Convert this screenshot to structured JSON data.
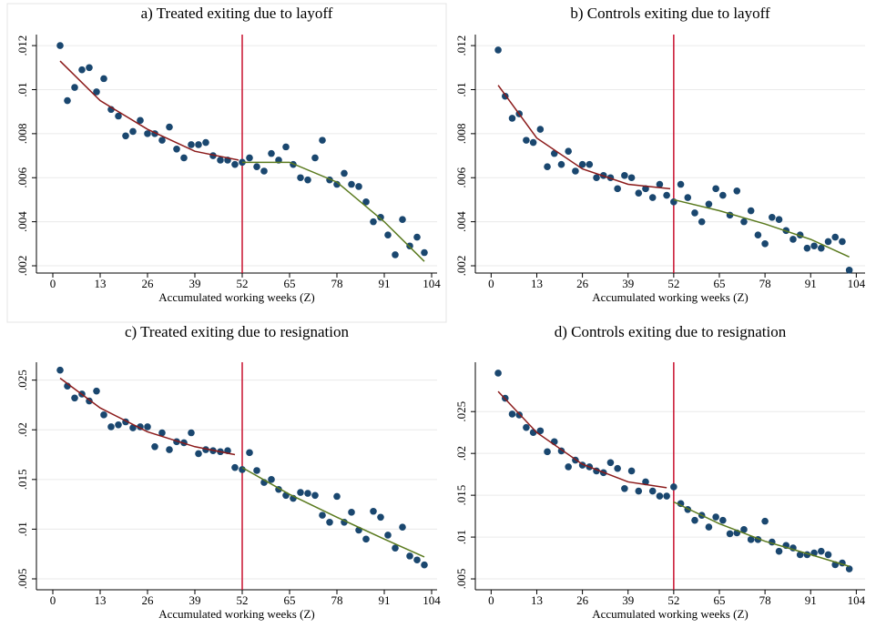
{
  "chart_data": [
    {
      "type": "scatter",
      "title": "a) Treated exiting due to layoff",
      "xlabel": "Accumulated working weeks (Z)",
      "xlim": [
        -4.5,
        105.5
      ],
      "xticks": [
        0,
        13,
        26,
        39,
        52,
        65,
        78,
        91,
        104
      ],
      "ylim": [
        0.00167,
        0.0125
      ],
      "yticks": [
        {
          "value": 0.002,
          "label": ".002"
        },
        {
          "value": 0.004,
          "label": ".004"
        },
        {
          "value": 0.006,
          "label": ".006"
        },
        {
          "value": 0.008,
          "label": ".008"
        },
        {
          "value": 0.01,
          "label": ".01"
        },
        {
          "value": 0.012,
          "label": ".012"
        }
      ],
      "grid": true,
      "vline": 52,
      "vline_color": "#c8102e",
      "points": {
        "color": "#1a476f",
        "x": [
          2,
          4,
          6,
          8,
          10,
          12,
          14,
          16,
          18,
          20,
          22,
          24,
          26,
          28,
          30,
          32,
          34,
          36,
          38,
          40,
          42,
          44,
          46,
          48,
          50,
          52,
          54,
          56,
          58,
          60,
          62,
          64,
          66,
          68,
          70,
          72,
          74,
          76,
          78,
          80,
          82,
          84,
          86,
          88,
          90,
          92,
          94,
          96,
          98,
          100,
          102
        ],
        "values": [
          0.012,
          0.0095,
          0.0101,
          0.0109,
          0.011,
          0.0099,
          0.0105,
          0.0091,
          0.0088,
          0.0079,
          0.0081,
          0.0086,
          0.008,
          0.008,
          0.0077,
          0.0083,
          0.0073,
          0.0069,
          0.0075,
          0.0075,
          0.0076,
          0.007,
          0.0068,
          0.0068,
          0.0066,
          0.0067,
          0.0069,
          0.0065,
          0.0063,
          0.0071,
          0.0068,
          0.0074,
          0.0066,
          0.006,
          0.0059,
          0.0069,
          0.0077,
          0.0059,
          0.0057,
          0.0062,
          0.0057,
          0.0056,
          0.0049,
          0.004,
          0.0042,
          0.0034,
          0.0025,
          0.0041,
          0.0029,
          0.0033,
          0.0026
        ]
      },
      "fits": [
        {
          "color": "#8b1a1a",
          "x": [
            2,
            13,
            26,
            39,
            51
          ],
          "values": [
            0.0113,
            0.0095,
            0.0082,
            0.0072,
            0.0068
          ]
        },
        {
          "color": "#5a7a1e",
          "x": [
            52,
            65,
            78,
            91,
            102
          ],
          "values": [
            0.0067,
            0.0067,
            0.0058,
            0.004,
            0.0022
          ]
        }
      ]
    },
    {
      "type": "scatter",
      "title": "b) Controls exiting due to layoff",
      "xlabel": "Accumulated working weeks (Z)",
      "xlim": [
        -4.5,
        106.5
      ],
      "xticks": [
        0,
        13,
        26,
        39,
        52,
        65,
        78,
        91,
        104
      ],
      "ylim": [
        0.00167,
        0.0125
      ],
      "yticks": [
        {
          "value": 0.002,
          "label": ".002"
        },
        {
          "value": 0.004,
          "label": ".004"
        },
        {
          "value": 0.006,
          "label": ".006"
        },
        {
          "value": 0.008,
          "label": ".008"
        },
        {
          "value": 0.01,
          "label": ".01"
        },
        {
          "value": 0.012,
          "label": ".012"
        }
      ],
      "grid": true,
      "vline": 52,
      "vline_color": "#c8102e",
      "points": {
        "color": "#1a476f",
        "x": [
          2,
          4,
          6,
          8,
          10,
          12,
          14,
          16,
          18,
          20,
          22,
          24,
          26,
          28,
          30,
          32,
          34,
          36,
          38,
          40,
          42,
          44,
          46,
          48,
          50,
          52,
          54,
          56,
          58,
          60,
          62,
          64,
          66,
          68,
          70,
          72,
          74,
          76,
          78,
          80,
          82,
          84,
          86,
          88,
          90,
          92,
          94,
          96,
          98,
          100,
          102
        ],
        "values": [
          0.0118,
          0.0097,
          0.0087,
          0.0089,
          0.0077,
          0.0076,
          0.0082,
          0.0065,
          0.0071,
          0.0066,
          0.0072,
          0.0063,
          0.0066,
          0.0066,
          0.006,
          0.0061,
          0.006,
          0.0055,
          0.0061,
          0.006,
          0.0053,
          0.0055,
          0.0051,
          0.0057,
          0.0052,
          0.0049,
          0.0057,
          0.0051,
          0.0044,
          0.004,
          0.0048,
          0.0055,
          0.0052,
          0.0043,
          0.0054,
          0.004,
          0.0045,
          0.0034,
          0.003,
          0.0042,
          0.0041,
          0.0036,
          0.0032,
          0.0034,
          0.0028,
          0.0029,
          0.0028,
          0.0031,
          0.0033,
          0.0031,
          0.0018
        ]
      },
      "fits": [
        {
          "color": "#8b1a1a",
          "x": [
            2,
            13,
            26,
            39,
            51
          ],
          "values": [
            0.0102,
            0.0078,
            0.0064,
            0.0057,
            0.0055
          ]
        },
        {
          "color": "#5a7a1e",
          "x": [
            52,
            65,
            78,
            91,
            102
          ],
          "values": [
            0.005,
            0.0045,
            0.0039,
            0.0032,
            0.0024
          ]
        }
      ]
    },
    {
      "type": "scatter",
      "title": "c) Treated exiting due to resignation",
      "xlabel": "Accumulated working weeks (Z)",
      "xlim": [
        -4.5,
        105.5
      ],
      "xticks": [
        0,
        13,
        26,
        39,
        52,
        65,
        78,
        91,
        104
      ],
      "ylim": [
        0.0039,
        0.0268
      ],
      "yticks": [
        {
          "value": 0.005,
          "label": ".005"
        },
        {
          "value": 0.01,
          "label": ".01"
        },
        {
          "value": 0.015,
          "label": ".015"
        },
        {
          "value": 0.02,
          "label": ".02"
        },
        {
          "value": 0.025,
          "label": ".025"
        }
      ],
      "grid": true,
      "vline": 52,
      "vline_color": "#c8102e",
      "points": {
        "color": "#1a476f",
        "x": [
          2,
          4,
          6,
          8,
          10,
          12,
          14,
          16,
          18,
          20,
          22,
          24,
          26,
          28,
          30,
          32,
          34,
          36,
          38,
          40,
          42,
          44,
          46,
          48,
          50,
          52,
          54,
          56,
          58,
          60,
          62,
          64,
          66,
          68,
          70,
          72,
          74,
          76,
          78,
          80,
          82,
          84,
          86,
          88,
          90,
          92,
          94,
          96,
          98,
          100,
          102
        ],
        "values": [
          0.026,
          0.0244,
          0.0232,
          0.0236,
          0.0229,
          0.0239,
          0.0215,
          0.0203,
          0.0205,
          0.0208,
          0.0202,
          0.0203,
          0.0203,
          0.0183,
          0.0197,
          0.018,
          0.0188,
          0.0187,
          0.0197,
          0.0176,
          0.018,
          0.0179,
          0.0178,
          0.0179,
          0.0162,
          0.016,
          0.0177,
          0.0159,
          0.0147,
          0.015,
          0.014,
          0.0134,
          0.0131,
          0.0137,
          0.0136,
          0.0134,
          0.0114,
          0.0107,
          0.0133,
          0.0107,
          0.0117,
          0.0099,
          0.009,
          0.0118,
          0.0112,
          0.0094,
          0.0081,
          0.0102,
          0.0073,
          0.0069,
          0.0064
        ]
      },
      "fits": [
        {
          "color": "#8b1a1a",
          "x": [
            2,
            13,
            26,
            39,
            50
          ],
          "values": [
            0.0252,
            0.0222,
            0.0198,
            0.0183,
            0.0175
          ]
        },
        {
          "color": "#5a7a1e",
          "x": [
            52,
            65,
            78,
            91,
            102
          ],
          "values": [
            0.0162,
            0.0135,
            0.0112,
            0.009,
            0.0072
          ]
        }
      ]
    },
    {
      "type": "scatter",
      "title": "d) Controls exiting due to resignation",
      "xlabel": "Accumulated working weeks (Z)",
      "xlim": [
        -4.5,
        106.5
      ],
      "xticks": [
        0,
        13,
        26,
        39,
        52,
        65,
        78,
        91,
        104
      ],
      "ylim": [
        0.0037,
        0.0309
      ],
      "yticks": [
        {
          "value": 0.005,
          "label": ".005"
        },
        {
          "value": 0.01,
          "label": ".01"
        },
        {
          "value": 0.015,
          "label": ".015"
        },
        {
          "value": 0.02,
          "label": ".02"
        },
        {
          "value": 0.025,
          "label": ".025"
        }
      ],
      "grid": true,
      "vline": 52,
      "vline_color": "#c8102e",
      "points": {
        "color": "#1a476f",
        "x": [
          2,
          4,
          6,
          8,
          10,
          12,
          14,
          16,
          18,
          20,
          22,
          24,
          26,
          28,
          30,
          32,
          34,
          36,
          38,
          40,
          42,
          44,
          46,
          48,
          50,
          52,
          54,
          56,
          58,
          60,
          62,
          64,
          66,
          68,
          70,
          72,
          74,
          76,
          78,
          80,
          82,
          84,
          86,
          88,
          90,
          92,
          94,
          96,
          98,
          100,
          102
        ],
        "values": [
          0.0296,
          0.0266,
          0.0247,
          0.0246,
          0.0231,
          0.0225,
          0.0227,
          0.0202,
          0.0214,
          0.0203,
          0.0184,
          0.0192,
          0.0186,
          0.0184,
          0.0179,
          0.0177,
          0.0189,
          0.0182,
          0.0158,
          0.0179,
          0.0155,
          0.0166,
          0.0155,
          0.0149,
          0.0149,
          0.016,
          0.014,
          0.0133,
          0.012,
          0.0126,
          0.0112,
          0.0124,
          0.012,
          0.0104,
          0.0105,
          0.0109,
          0.0097,
          0.0097,
          0.0119,
          0.0094,
          0.0083,
          0.009,
          0.0087,
          0.0079,
          0.0079,
          0.0081,
          0.0083,
          0.0079,
          0.0067,
          0.0069,
          0.0062
        ]
      },
      "fits": [
        {
          "color": "#8b1a1a",
          "x": [
            2,
            13,
            26,
            39,
            50
          ],
          "values": [
            0.0274,
            0.0225,
            0.0187,
            0.0166,
            0.0159
          ]
        },
        {
          "color": "#5a7a1e",
          "x": [
            52,
            65,
            78,
            91,
            102
          ],
          "values": [
            0.0142,
            0.0116,
            0.0095,
            0.0079,
            0.0065
          ]
        }
      ]
    }
  ]
}
